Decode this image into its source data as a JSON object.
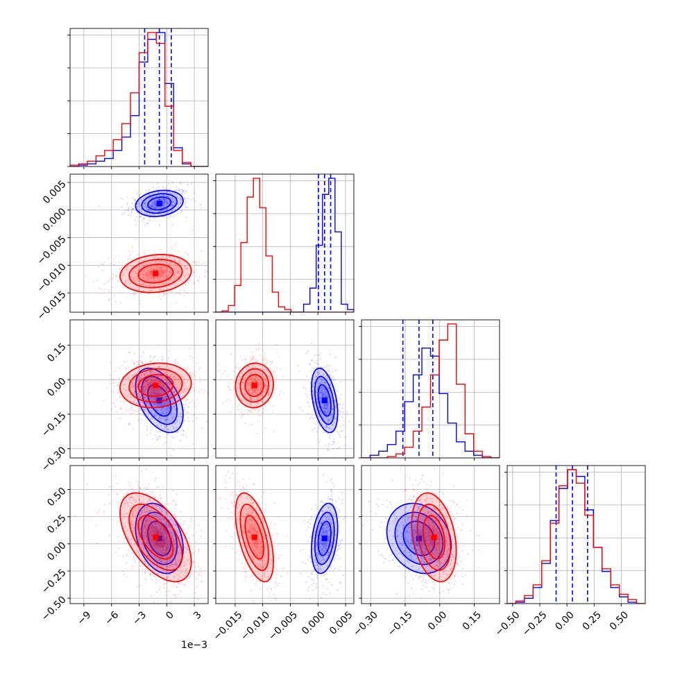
{
  "chart_data": {
    "type": "corner",
    "grid": true,
    "colors": {
      "series_a": "#0000ff",
      "series_b": "#ff0000"
    },
    "params": [
      {
        "lim": [
          -0.0105,
          0.0045
        ],
        "ticks": [
          -0.009,
          -0.006,
          -0.003,
          0.0,
          0.003
        ],
        "tick_labels": [
          "−9",
          "−6",
          "−3",
          "0",
          "3"
        ],
        "offset_text": "1e−3"
      },
      {
        "lim": [
          -0.0185,
          0.0065
        ],
        "ticks": [
          -0.015,
          -0.01,
          -0.005,
          0.0,
          0.005
        ],
        "tick_labels": [
          "−0.015",
          "−0.010",
          "−0.005",
          "0.000",
          "0.005"
        ]
      },
      {
        "lim": [
          -0.34,
          0.26
        ],
        "ticks": [
          -0.3,
          -0.15,
          0.0,
          0.15
        ],
        "tick_labels": [
          "−0.30",
          "−0.15",
          "0.00",
          "0.15"
        ]
      },
      {
        "lim": [
          -0.55,
          0.72
        ],
        "ticks": [
          -0.5,
          -0.25,
          0.0,
          0.25,
          0.5
        ],
        "tick_labels": [
          "−0.50",
          "−0.25",
          "0.00",
          "0.25",
          "0.50"
        ]
      }
    ],
    "series": [
      {
        "name": "",
        "color": "#0000ff",
        "mean": [
          -0.0008,
          0.0012,
          -0.09,
          0.05
        ],
        "std": [
          0.0012,
          0.0011,
          0.065,
          0.15
        ],
        "corr": [
          [
            1,
            0.2,
            -0.45,
            -0.3
          ],
          [
            0.2,
            1,
            -0.4,
            0.3
          ],
          [
            -0.45,
            -0.4,
            1,
            -0.2
          ],
          [
            -0.3,
            0.3,
            -0.2,
            1
          ]
        ],
        "quantiles": [
          [
            -0.0024,
            -0.0008,
            0.0005
          ],
          [
            0.0001,
            0.0012,
            0.0023
          ],
          [
            -0.16,
            -0.09,
            -0.03
          ],
          [
            -0.1,
            0.05,
            0.19
          ]
        ],
        "hist": [
          [
            0,
            0.01,
            0.02,
            0.04,
            0.06,
            0.12,
            0.22,
            0.38,
            0.78,
            0.95,
            1.0,
            0.62,
            0.14,
            0.02,
            0.0,
            0.0
          ],
          [
            0,
            0,
            0,
            0,
            0,
            0,
            0,
            0,
            0,
            0,
            0,
            0,
            0,
            0,
            0.06,
            0.18,
            0.5,
            0.88,
            1.0,
            0.6,
            0.06,
            0.02
          ],
          [
            0.0,
            0.02,
            0.05,
            0.1,
            0.2,
            0.42,
            0.62,
            0.82,
            0.76,
            0.48,
            0.26,
            0.12,
            0.05,
            0.02,
            0.0,
            0.0
          ],
          [
            0.0,
            0.01,
            0.04,
            0.12,
            0.3,
            0.62,
            0.86,
            1.0,
            0.95,
            0.7,
            0.42,
            0.24,
            0.12,
            0.05,
            0.01,
            0.0
          ]
        ]
      },
      {
        "name": "",
        "color": "#ff0000",
        "mean": [
          -0.0012,
          -0.0115,
          -0.025,
          0.06
        ],
        "std": [
          0.0018,
          0.0016,
          0.045,
          0.19
        ],
        "corr": [
          [
            1,
            0.15,
            0.1,
            -0.55
          ],
          [
            0.15,
            1,
            0.05,
            -0.55
          ],
          [
            0.1,
            0.05,
            1,
            -0.3
          ],
          [
            -0.55,
            -0.55,
            -0.3,
            1
          ]
        ],
        "quantiles": [],
        "hist": [
          [
            0.01,
            0.02,
            0.04,
            0.08,
            0.12,
            0.2,
            0.32,
            0.55,
            0.85,
            1.0,
            0.92,
            0.45,
            0.12,
            0.03,
            0.0,
            0.0
          ],
          [
            0,
            0.01,
            0.05,
            0.2,
            0.52,
            0.86,
            1.0,
            0.78,
            0.42,
            0.15,
            0.04,
            0.02,
            0.0,
            0,
            0,
            0,
            0,
            0,
            0,
            0,
            0,
            0
          ],
          [
            0,
            0,
            0,
            0.01,
            0.03,
            0.08,
            0.2,
            0.38,
            0.62,
            0.88,
            1.0,
            0.55,
            0.18,
            0.05,
            0.01,
            0.0
          ],
          [
            0.0,
            0.02,
            0.06,
            0.14,
            0.32,
            0.6,
            0.88,
            1.0,
            0.9,
            0.66,
            0.42,
            0.26,
            0.14,
            0.07,
            0.03,
            0.0
          ]
        ]
      }
    ]
  }
}
